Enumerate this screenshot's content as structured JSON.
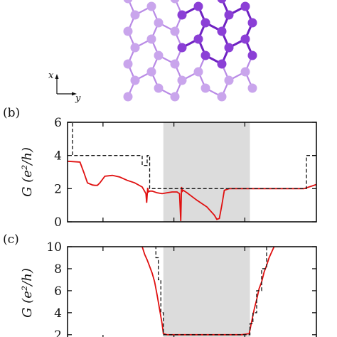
{
  "schematic": {
    "axis_x_label": "x",
    "axis_y_label": "y",
    "colors": {
      "light_atom": "#c9a5ec",
      "dark_atom": "#8b3fd6",
      "light_bond": "#b98be6",
      "dark_bond": "#6f22c2"
    }
  },
  "colors": {
    "red_curve": "#e01010",
    "dashed_curve": "#111111",
    "shade": "#dcdcdc",
    "frame": "#000000"
  },
  "chart_data": [
    {
      "panel_label": "(b)",
      "type": "line",
      "ylabel": "G (e²/h)",
      "ylim": [
        0,
        6
      ],
      "yticks": [
        "0",
        "2",
        "4",
        "6"
      ],
      "xlim": [
        0,
        1
      ],
      "shaded_region": [
        0.385,
        0.733
      ],
      "series": [
        {
          "style": "solid",
          "x": [
            0,
            0.05,
            0.065,
            0.08,
            0.1,
            0.11,
            0.12,
            0.13,
            0.15,
            0.18,
            0.21,
            0.24,
            0.27,
            0.3,
            0.315,
            0.318,
            0.322,
            0.325,
            0.33,
            0.34,
            0.36,
            0.38,
            0.4,
            0.42,
            0.44,
            0.45,
            0.455,
            0.458,
            0.462,
            0.465,
            0.48,
            0.52,
            0.56,
            0.59,
            0.6,
            0.61,
            0.62,
            0.63,
            0.65,
            0.7,
            0.8,
            0.9,
            0.95,
            1.0
          ],
          "y": [
            3.65,
            3.6,
            3.0,
            2.35,
            2.22,
            2.2,
            2.2,
            2.35,
            2.75,
            2.8,
            2.7,
            2.5,
            2.35,
            2.1,
            1.7,
            1.15,
            2.05,
            1.8,
            1.85,
            1.85,
            1.75,
            1.7,
            1.75,
            1.8,
            1.8,
            1.7,
            0.05,
            2.1,
            1.85,
            1.9,
            1.75,
            1.3,
            0.9,
            0.4,
            0.15,
            0.2,
            1.0,
            1.9,
            2.0,
            2.0,
            2.0,
            2.0,
            2.0,
            2.25
          ]
        },
        {
          "style": "dashed",
          "x": [
            0,
            0.02,
            0.02,
            0.3,
            0.3,
            0.32,
            0.32,
            0.33,
            0.33,
            0.96,
            0.96,
            1.0
          ],
          "y": [
            6,
            6,
            4,
            4,
            3.4,
            3.4,
            4,
            4,
            2,
            2,
            4,
            4
          ]
        }
      ]
    },
    {
      "panel_label": "(c)",
      "type": "line",
      "ylabel": "G (e²/h)",
      "ylim": [
        1.6,
        10
      ],
      "yticks": [
        "2",
        "4",
        "6",
        "8",
        "10"
      ],
      "xlim": [
        0,
        1
      ],
      "shaded_region": [
        0.385,
        0.733
      ],
      "series": [
        {
          "style": "solid",
          "x": [
            0.3,
            0.31,
            0.32,
            0.33,
            0.34,
            0.35,
            0.36,
            0.37,
            0.38,
            0.385,
            0.4,
            0.5,
            0.6,
            0.7,
            0.73,
            0.74,
            0.75,
            0.76,
            0.77,
            0.78,
            0.79,
            0.8,
            0.81,
            0.82,
            0.83
          ],
          "y": [
            10,
            9.3,
            8.8,
            8.2,
            7.6,
            6.8,
            5.6,
            4.3,
            3.0,
            2.1,
            2.0,
            2.0,
            2.0,
            2.0,
            2.1,
            3.2,
            4.3,
            5.2,
            6.2,
            6.8,
            7.7,
            8.3,
            9.0,
            9.5,
            10
          ]
        },
        {
          "style": "dashed",
          "x": [
            0.35,
            0.355,
            0.355,
            0.365,
            0.365,
            0.375,
            0.375,
            0.385,
            0.385,
            0.733,
            0.733,
            0.745,
            0.745,
            0.76,
            0.76,
            0.78,
            0.78,
            0.8,
            0.8,
            0.82
          ],
          "y": [
            10,
            10,
            9,
            9,
            7,
            7,
            4,
            4,
            2,
            2,
            3,
            3,
            4,
            4,
            6,
            6,
            8,
            8,
            10,
            10
          ]
        }
      ]
    }
  ]
}
